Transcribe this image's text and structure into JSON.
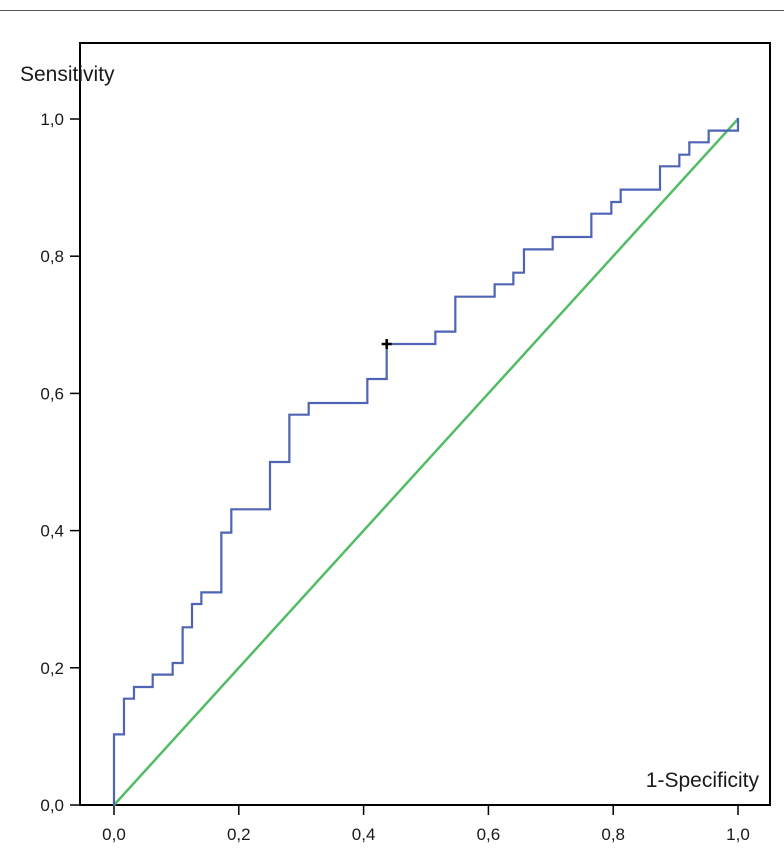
{
  "chart_data": {
    "type": "line",
    "xlabel": "1-Specificity",
    "ylabel": "Sensitivity",
    "xlim": [
      0,
      1
    ],
    "ylim": [
      0,
      1
    ],
    "x_ticks": [
      "0,0",
      "0,2",
      "0,4",
      "0,6",
      "0,8",
      "1,0"
    ],
    "y_ticks": [
      "0,0",
      "0,2",
      "0,4",
      "0,6",
      "0,8",
      "1,0"
    ],
    "grid": false,
    "series": [
      {
        "style": "step",
        "color": "#4f64b4",
        "points": [
          [
            0.0,
            0.0
          ],
          [
            0.0,
            0.103
          ],
          [
            0.016,
            0.103
          ],
          [
            0.016,
            0.155
          ],
          [
            0.032,
            0.155
          ],
          [
            0.032,
            0.172
          ],
          [
            0.062,
            0.172
          ],
          [
            0.062,
            0.19
          ],
          [
            0.094,
            0.19
          ],
          [
            0.094,
            0.207
          ],
          [
            0.11,
            0.207
          ],
          [
            0.11,
            0.259
          ],
          [
            0.125,
            0.259
          ],
          [
            0.125,
            0.293
          ],
          [
            0.14,
            0.293
          ],
          [
            0.14,
            0.31
          ],
          [
            0.172,
            0.31
          ],
          [
            0.172,
            0.397
          ],
          [
            0.188,
            0.397
          ],
          [
            0.188,
            0.431
          ],
          [
            0.25,
            0.431
          ],
          [
            0.25,
            0.5
          ],
          [
            0.281,
            0.5
          ],
          [
            0.281,
            0.569
          ],
          [
            0.312,
            0.569
          ],
          [
            0.312,
            0.586
          ],
          [
            0.406,
            0.586
          ],
          [
            0.406,
            0.621
          ],
          [
            0.437,
            0.621
          ],
          [
            0.437,
            0.672
          ],
          [
            0.515,
            0.672
          ],
          [
            0.515,
            0.69
          ],
          [
            0.547,
            0.69
          ],
          [
            0.547,
            0.741
          ],
          [
            0.61,
            0.741
          ],
          [
            0.61,
            0.759
          ],
          [
            0.64,
            0.759
          ],
          [
            0.64,
            0.776
          ],
          [
            0.657,
            0.776
          ],
          [
            0.657,
            0.81
          ],
          [
            0.703,
            0.81
          ],
          [
            0.703,
            0.828
          ],
          [
            0.765,
            0.828
          ],
          [
            0.765,
            0.862
          ],
          [
            0.797,
            0.862
          ],
          [
            0.797,
            0.879
          ],
          [
            0.812,
            0.879
          ],
          [
            0.812,
            0.897
          ],
          [
            0.875,
            0.897
          ],
          [
            0.875,
            0.931
          ],
          [
            0.906,
            0.931
          ],
          [
            0.906,
            0.948
          ],
          [
            0.922,
            0.948
          ],
          [
            0.922,
            0.966
          ],
          [
            0.953,
            0.966
          ],
          [
            0.953,
            0.983
          ],
          [
            1.0,
            0.983
          ],
          [
            1.0,
            1.0
          ]
        ]
      },
      {
        "style": "reference",
        "color": "#55bb66",
        "points": [
          [
            0,
            0
          ],
          [
            1,
            1
          ]
        ]
      }
    ],
    "marker": {
      "x": 0.437,
      "y": 0.672,
      "symbol": "+"
    }
  }
}
